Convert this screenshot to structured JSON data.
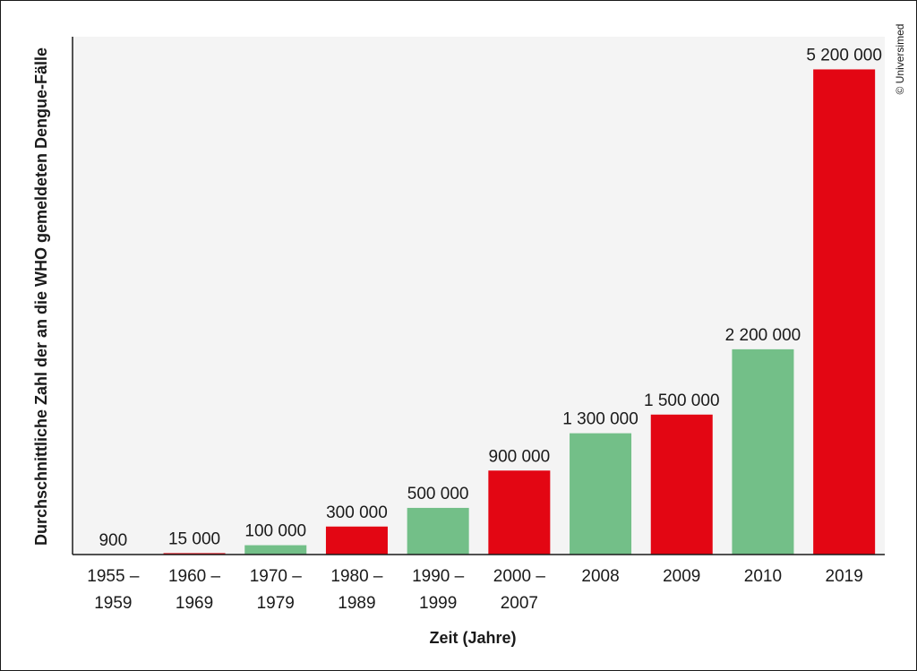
{
  "chart_data": {
    "type": "bar",
    "categories": [
      [
        "1955 –",
        "1959"
      ],
      [
        "1960 –",
        "1969"
      ],
      [
        "1970 –",
        "1979"
      ],
      [
        "1980 –",
        "1989"
      ],
      [
        "1990 –",
        "1999"
      ],
      [
        "2000 –",
        "2007"
      ],
      [
        "2008"
      ],
      [
        "2009"
      ],
      [
        "2010"
      ],
      [
        "2019"
      ]
    ],
    "values": [
      900,
      15000,
      100000,
      300000,
      500000,
      900000,
      1300000,
      1500000,
      2200000,
      5200000
    ],
    "value_labels": [
      "900",
      "15 000",
      "100 000",
      "300 000",
      "500 000",
      "900 000",
      "1 300 000",
      "1 500 000",
      "2 200 000",
      "5 200 000"
    ],
    "bar_colors": [
      "#73bf88",
      "#e30613",
      "#73bf88",
      "#e30613",
      "#73bf88",
      "#e30613",
      "#73bf88",
      "#e30613",
      "#73bf88",
      "#e30613"
    ],
    "xlabel": "Zeit (Jahre)",
    "ylabel": "Durchschnittliche Zahl der an die WHO gemeldeten Dengue-Fälle",
    "ylim": [
      0,
      5550000
    ],
    "grid": false,
    "legend": "none"
  },
  "credit": "© Universimed",
  "colors": {
    "green": "#73bf88",
    "red": "#e30613",
    "plot_background": "#f4f4f4",
    "text": "#1a1a1a"
  }
}
